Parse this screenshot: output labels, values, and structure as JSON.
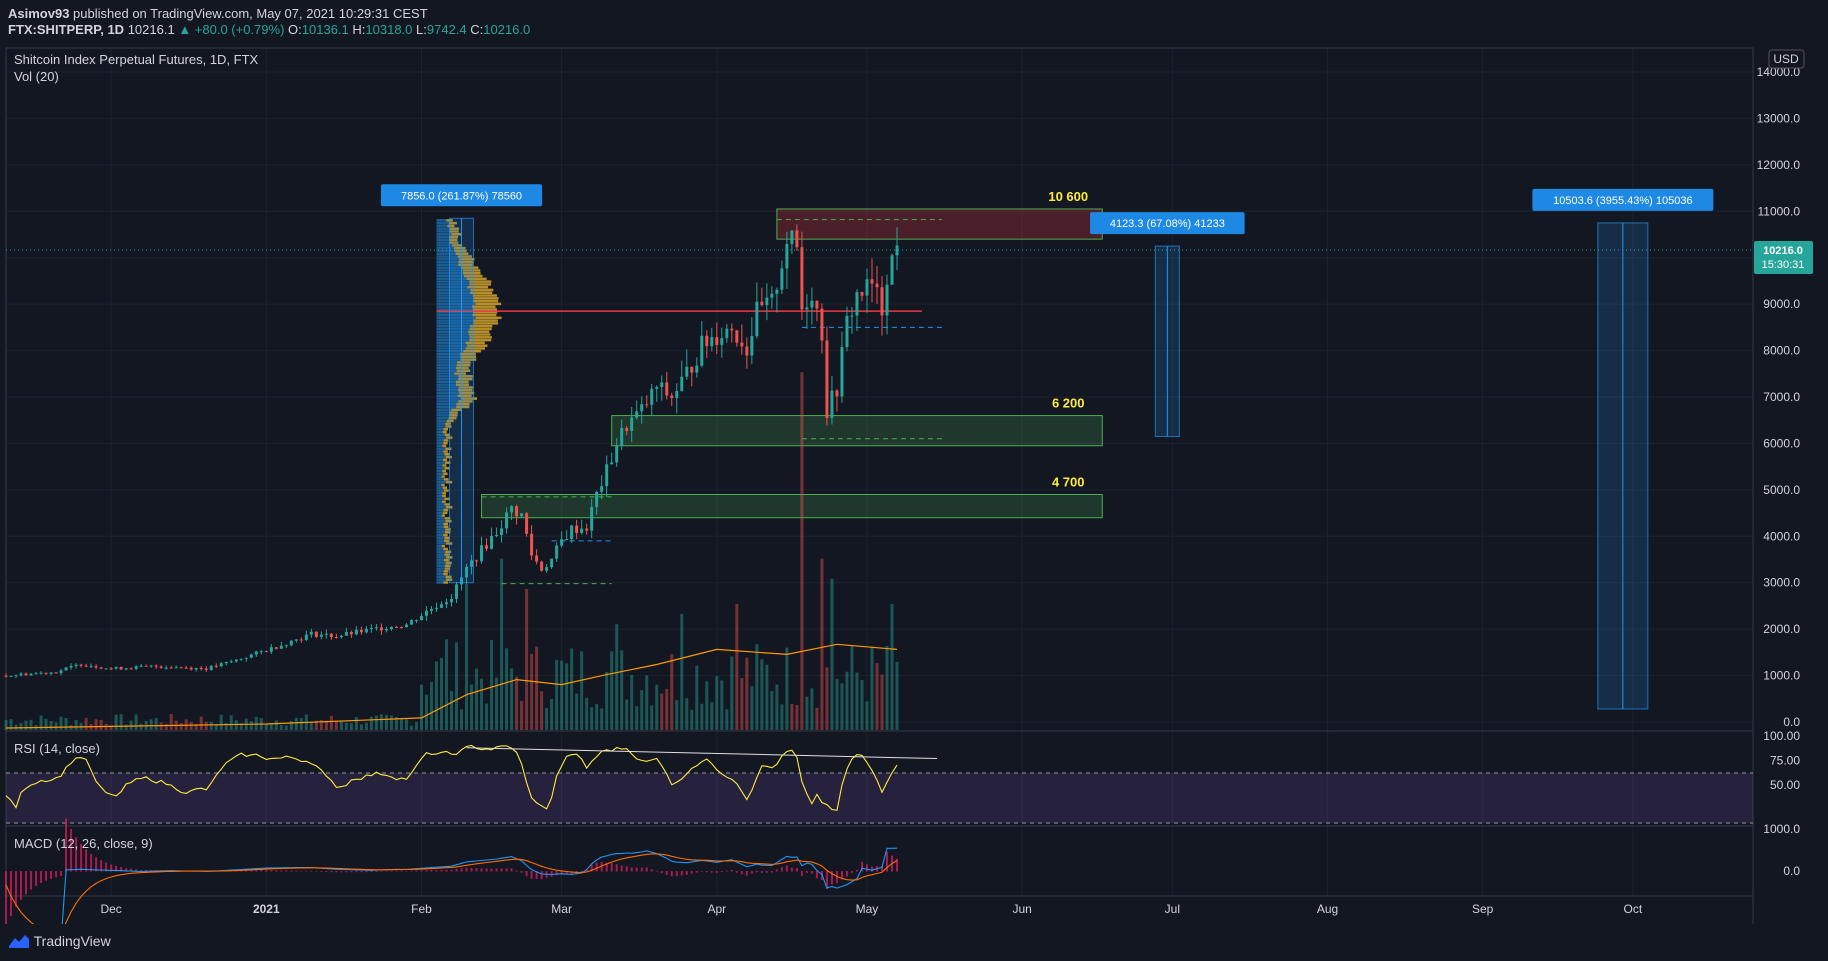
{
  "header": {
    "author": "Asimov93",
    "published": "published on TradingView.com, May 07, 2021 10:29:31 CEST",
    "symbol": "FTX:SHITPERP, 1D",
    "last": "10216.1",
    "change": "▲ +80.0 (+0.79%)",
    "open_label": "O:",
    "open": "10136.1",
    "high_label": "H:",
    "high": "10318.0",
    "low_label": "L:",
    "low": "9742.4",
    "close_label": "C:",
    "close": "10216.0"
  },
  "main_pane": {
    "title": "Shitcoin Index Perpetual Futures, 1D, FTX",
    "vol_label": "Vol (20)",
    "currency": "USD",
    "last_price_label": "10216.0",
    "countdown": "15:30:31"
  },
  "rsi_pane": {
    "title": "RSI (14, close)"
  },
  "macd_pane": {
    "title": "MACD (12, 26, close, 9)"
  },
  "footer": {
    "brand": "TradingView"
  },
  "colors": {
    "background": "#131722",
    "up": "#26a69a",
    "down": "#ef5350",
    "zone": "#4caf50",
    "level_text": "#ffeb3b",
    "measure": "#2196f3",
    "poc": "#f23645"
  },
  "chart_data": {
    "type": "candlestick",
    "title": "Shitcoin Index Perpetual Futures, 1D, FTX",
    "x_ticks": [
      {
        "date": "2020-12-01",
        "label": "Dec"
      },
      {
        "date": "2021-01-01",
        "label": "2021"
      },
      {
        "date": "2021-02-01",
        "label": "Feb"
      },
      {
        "date": "2021-03-01",
        "label": "Mar"
      },
      {
        "date": "2021-04-01",
        "label": "Apr"
      },
      {
        "date": "2021-05-01",
        "label": "May"
      },
      {
        "date": "2021-06-01",
        "label": "Jun"
      },
      {
        "date": "2021-07-01",
        "label": "Jul"
      },
      {
        "date": "2021-08-01",
        "label": "Aug"
      },
      {
        "date": "2021-09-01",
        "label": "Sep"
      },
      {
        "date": "2021-10-01",
        "label": "Oct"
      }
    ],
    "x_range": [
      "2020-11-10",
      "2021-10-25"
    ],
    "y_range": [
      -200,
      14500
    ],
    "y_ticks": [
      0,
      1000,
      2000,
      3000,
      4000,
      5000,
      6000,
      7000,
      8000,
      9000,
      10000,
      11000,
      12000,
      13000,
      14000
    ],
    "y_tick_labels": [
      "0.0",
      "1000.0",
      "2000.0",
      "3000.0",
      "4000.0",
      "5000.0",
      "6000.0",
      "7000.0",
      "8000.0",
      "9000.0",
      "10000.0",
      "11000.0",
      "12000.0",
      "13000.0",
      "14000.0"
    ],
    "close_path": [
      [
        "2020-11-10",
        1000
      ],
      [
        "2020-11-20",
        1080
      ],
      [
        "2020-11-25",
        1250
      ],
      [
        "2020-12-01",
        1150
      ],
      [
        "2020-12-10",
        1200
      ],
      [
        "2020-12-20",
        1150
      ],
      [
        "2020-12-25",
        1300
      ],
      [
        "2021-01-01",
        1550
      ],
      [
        "2021-01-05",
        1700
      ],
      [
        "2021-01-10",
        1900
      ],
      [
        "2021-01-15",
        1850
      ],
      [
        "2021-01-20",
        1950
      ],
      [
        "2021-01-25",
        2050
      ],
      [
        "2021-01-29",
        2100
      ],
      [
        "2021-02-03",
        2450
      ],
      [
        "2021-02-07",
        2700
      ],
      [
        "2021-02-10",
        3300
      ],
      [
        "2021-02-13",
        3700
      ],
      [
        "2021-02-16",
        4100
      ],
      [
        "2021-02-19",
        4600
      ],
      [
        "2021-02-21",
        4450
      ],
      [
        "2021-02-23",
        3600
      ],
      [
        "2021-02-25",
        3300
      ],
      [
        "2021-02-27",
        3500
      ],
      [
        "2021-03-01",
        3900
      ],
      [
        "2021-03-03",
        4150
      ],
      [
        "2021-03-06",
        4200
      ],
      [
        "2021-03-08",
        4900
      ],
      [
        "2021-03-10",
        5400
      ],
      [
        "2021-03-12",
        6000
      ],
      [
        "2021-03-14",
        6400
      ],
      [
        "2021-03-17",
        6700
      ],
      [
        "2021-03-20",
        7200
      ],
      [
        "2021-03-23",
        7000
      ],
      [
        "2021-03-26",
        7500
      ],
      [
        "2021-03-29",
        8100
      ],
      [
        "2021-04-01",
        8350
      ],
      [
        "2021-04-04",
        8500
      ],
      [
        "2021-04-07",
        8050
      ],
      [
        "2021-04-09",
        8800
      ],
      [
        "2021-04-12",
        9000
      ],
      [
        "2021-04-15",
        10400
      ],
      [
        "2021-04-17",
        10200
      ],
      [
        "2021-04-18",
        8900
      ],
      [
        "2021-04-20",
        9300
      ],
      [
        "2021-04-22",
        8400
      ],
      [
        "2021-04-23",
        6700
      ],
      [
        "2021-04-25",
        7200
      ],
      [
        "2021-04-27",
        8600
      ],
      [
        "2021-04-29",
        9200
      ],
      [
        "2021-05-02",
        9400
      ],
      [
        "2021-05-04",
        8900
      ],
      [
        "2021-05-05",
        9700
      ],
      [
        "2021-05-07",
        10216
      ]
    ],
    "volume_ma": [
      [
        "2020-11-10",
        20
      ],
      [
        "2021-01-01",
        60
      ],
      [
        "2021-02-01",
        120
      ],
      [
        "2021-02-10",
        350
      ],
      [
        "2021-02-20",
        500
      ],
      [
        "2021-03-01",
        450
      ],
      [
        "2021-03-10",
        550
      ],
      [
        "2021-03-20",
        650
      ],
      [
        "2021-04-01",
        800
      ],
      [
        "2021-04-15",
        750
      ],
      [
        "2021-04-25",
        850
      ],
      [
        "2021-05-07",
        800
      ]
    ],
    "volume_spikes": [
      [
        "2021-02-06",
        900
      ],
      [
        "2021-02-10",
        1450
      ],
      [
        "2021-02-17",
        1700
      ],
      [
        "2021-02-22",
        1400
      ],
      [
        "2021-03-12",
        1050
      ],
      [
        "2021-03-25",
        1150
      ],
      [
        "2021-04-05",
        1250
      ],
      [
        "2021-04-18",
        3550
      ],
      [
        "2021-04-22",
        1700
      ],
      [
        "2021-04-24",
        1500
      ],
      [
        "2021-05-06",
        1250
      ]
    ],
    "zones": [
      {
        "label": "10 600",
        "from": "2021-04-13",
        "to": "2021-06-17",
        "low": 10400,
        "high": 11050,
        "color": "red"
      },
      {
        "label": "6 200",
        "from": "2021-03-11",
        "to": "2021-06-17",
        "low": 5950,
        "high": 6600,
        "color": "green"
      },
      {
        "label": "4 700",
        "from": "2021-02-13",
        "to": "2021-06-17",
        "low": 4400,
        "high": 4900,
        "color": "green"
      }
    ],
    "poc_level": 8850,
    "measures": [
      {
        "label": "7856.0 (261.87%) 78560",
        "date": "2021-02-09",
        "low": 3000,
        "high": 10850
      },
      {
        "label": "4123.3 (67.08%) 41233",
        "date": "2021-06-30",
        "low": 6150,
        "high": 10250
      },
      {
        "label": "10503.6 (3955.43%) 105036",
        "date": "2021-09-29",
        "low": 280,
        "high": 10750
      }
    ],
    "rsi": {
      "levels": [
        70,
        30
      ],
      "y_tick_labels": [
        "100.00",
        "75.00",
        "50.00"
      ],
      "trendline": [
        [
          "2021-02-10",
          88
        ],
        [
          "2021-05-15",
          77
        ]
      ]
    },
    "macd": {
      "y_tick_labels": [
        "1000.0",
        "0.0"
      ]
    }
  }
}
